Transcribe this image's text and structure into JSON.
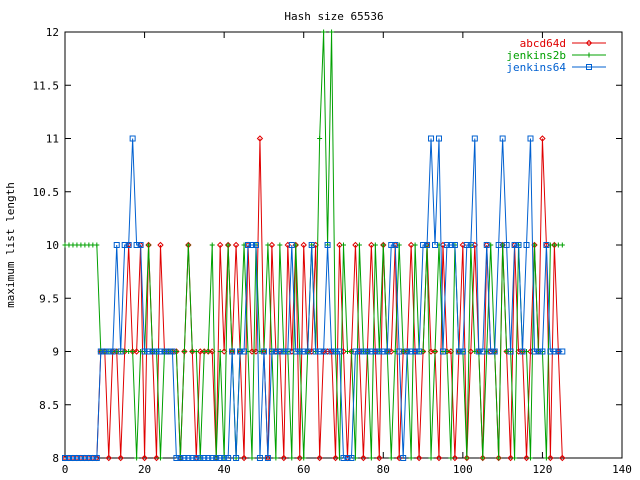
{
  "chart_data": {
    "type": "line",
    "title": "Hash size 65536",
    "xlabel": "",
    "ylabel": "maximum list length",
    "xlim": [
      0,
      140
    ],
    "ylim": [
      8,
      12
    ],
    "xticks": [
      0,
      20,
      40,
      60,
      80,
      100,
      120,
      140
    ],
    "yticks": [
      8,
      8.5,
      9,
      9.5,
      10,
      10.5,
      11,
      11.5,
      12
    ],
    "xtick_labels": [
      "0",
      "20",
      "40",
      "60",
      "80",
      "100",
      "120",
      "140"
    ],
    "ytick_labels": [
      "8",
      "8.5",
      "9",
      "9.5",
      "10",
      "10.5",
      "11",
      "11.5",
      "12"
    ],
    "grid": false,
    "legend_position": "top-right",
    "series": [
      {
        "name": "abcd64d",
        "color": "#e00000",
        "marker": "diamond",
        "values": [
          8,
          8,
          8,
          8,
          8,
          8,
          8,
          8,
          8,
          9,
          9,
          8,
          9,
          9,
          8,
          9,
          10,
          9,
          9,
          10,
          8,
          10,
          9,
          8,
          10,
          9,
          9,
          9,
          9,
          8,
          9,
          10,
          9,
          8,
          9,
          9,
          9,
          9,
          8,
          10,
          9,
          10,
          9,
          10,
          9,
          8,
          10,
          9,
          9,
          11,
          9,
          8,
          10,
          9,
          9,
          8,
          10,
          9,
          10,
          8,
          10,
          9,
          9,
          10,
          8,
          9,
          9,
          9,
          8,
          10,
          9,
          8,
          9,
          10,
          9,
          8,
          9,
          10,
          9,
          8,
          10,
          9,
          9,
          10,
          8,
          9,
          9,
          10,
          9,
          8,
          9,
          10,
          9,
          9,
          8,
          10,
          9,
          9,
          8,
          9,
          10,
          8,
          9,
          10,
          9,
          8,
          10,
          9,
          9,
          8,
          10,
          9,
          8,
          10,
          9,
          9,
          8,
          9,
          10,
          9,
          11,
          10,
          8,
          10,
          9,
          8
        ]
      },
      {
        "name": "jenkins2b",
        "color": "#00a000",
        "marker": "plus",
        "values": [
          10,
          10,
          10,
          10,
          10,
          10,
          10,
          10,
          10,
          9,
          9,
          9,
          9,
          9,
          9,
          9,
          9,
          9,
          8,
          9,
          9,
          10,
          9,
          9,
          8,
          9,
          9,
          9,
          9,
          8,
          9,
          10,
          9,
          9,
          8,
          9,
          9,
          10,
          8,
          9,
          8,
          10,
          9,
          8,
          9,
          10,
          9,
          8,
          10,
          9,
          9,
          10,
          9,
          8,
          10,
          9,
          9,
          8,
          10,
          9,
          8,
          9,
          10,
          9,
          11,
          12,
          10,
          12,
          9,
          8,
          10,
          9,
          9,
          8,
          10,
          9,
          9,
          8,
          10,
          9,
          10,
          9,
          8,
          9,
          10,
          9,
          9,
          8,
          10,
          9,
          9,
          10,
          8,
          9,
          10,
          9,
          9,
          8,
          10,
          9,
          9,
          8,
          10,
          9,
          9,
          8,
          9,
          10,
          9,
          8,
          10,
          9,
          9,
          8,
          10,
          9,
          9,
          8,
          10,
          9,
          9,
          8,
          10,
          10,
          10,
          10
        ]
      },
      {
        "name": "jenkins64",
        "color": "#0060d0",
        "marker": "square",
        "values": [
          8,
          8,
          8,
          8,
          8,
          8,
          8,
          8,
          8,
          9,
          9,
          9,
          9,
          10,
          9,
          10,
          10,
          11,
          10,
          10,
          9,
          9,
          9,
          9,
          9,
          9,
          9,
          9,
          8,
          8,
          8,
          8,
          8,
          8,
          8,
          8,
          8,
          8,
          8,
          8,
          8,
          8,
          9,
          8,
          9,
          9,
          10,
          10,
          10,
          8,
          9,
          8,
          9,
          9,
          9,
          9,
          9,
          10,
          9,
          9,
          9,
          9,
          10,
          9,
          9,
          9,
          10,
          9,
          9,
          9,
          8,
          8,
          8,
          9,
          9,
          9,
          9,
          9,
          9,
          9,
          9,
          9,
          10,
          10,
          9,
          8,
          9,
          9,
          9,
          9,
          10,
          10,
          11,
          10,
          11,
          9,
          10,
          10,
          10,
          9,
          9,
          10,
          10,
          11,
          9,
          9,
          10,
          9,
          9,
          10,
          11,
          10,
          9,
          10,
          10,
          9,
          10,
          11,
          9,
          9,
          9,
          10,
          9,
          9,
          9,
          9
        ]
      }
    ]
  }
}
